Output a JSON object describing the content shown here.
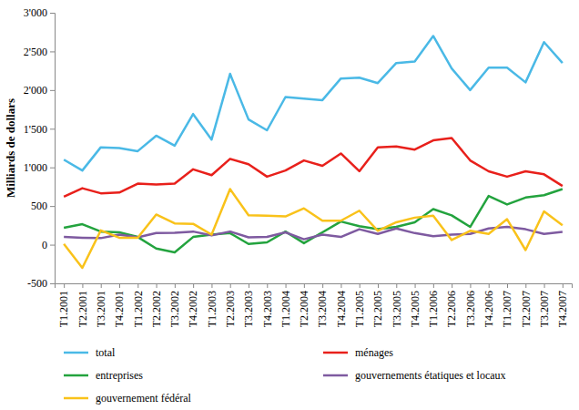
{
  "chart_data": {
    "type": "line",
    "y_label": "Milliards de dollars",
    "categories": [
      "T1.2001",
      "T2.2001",
      "T3.2001",
      "T4.2001",
      "T1.2002",
      "T2.2002",
      "T3.2002",
      "T4.2002",
      "T1.2003",
      "T2.2003",
      "T3.2003",
      "T4.2003",
      "T1.2004",
      "T2.2004",
      "T3.2004",
      "T4.2004",
      "T1.2005",
      "T2.2005",
      "T3.2005",
      "T4.2005",
      "T1.2006",
      "T2.2006",
      "T3.2006",
      "T4.2006",
      "T1.2007",
      "T2.2007",
      "T3.2007",
      "T4.2007"
    ],
    "series": [
      {
        "name": "total",
        "color": "#4ab9e6",
        "values": [
          1100,
          960,
          1260,
          1250,
          1210,
          1410,
          1280,
          1690,
          1360,
          2210,
          1620,
          1480,
          1910,
          1890,
          1870,
          2150,
          2160,
          2090,
          2350,
          2370,
          2700,
          2280,
          2000,
          2290,
          2290,
          2100,
          2620,
          2350
        ]
      },
      {
        "name": "ménages",
        "color": "#e8201b",
        "values": [
          620,
          730,
          665,
          675,
          790,
          780,
          790,
          975,
          900,
          1110,
          1040,
          880,
          960,
          1090,
          1020,
          1180,
          950,
          1260,
          1270,
          1230,
          1350,
          1380,
          1090,
          950,
          880,
          950,
          910,
          760
        ]
      },
      {
        "name": "entreprises",
        "color": "#23a33e",
        "values": [
          220,
          265,
          170,
          160,
          100,
          -50,
          -100,
          100,
          130,
          150,
          10,
          30,
          170,
          20,
          160,
          300,
          240,
          200,
          230,
          290,
          460,
          380,
          230,
          630,
          520,
          610,
          640,
          720
        ]
      },
      {
        "name": "gouvernements étatiques et locaux",
        "color": "#7e5aa0",
        "values": [
          100,
          90,
          85,
          130,
          95,
          150,
          155,
          170,
          120,
          170,
          95,
          100,
          160,
          70,
          130,
          100,
          200,
          140,
          210,
          150,
          110,
          130,
          140,
          210,
          230,
          200,
          140,
          165
        ]
      },
      {
        "name": "gouvernement fédéral",
        "color": "#f9c21a",
        "values": [
          10,
          -300,
          185,
          90,
          90,
          390,
          275,
          270,
          130,
          720,
          380,
          375,
          365,
          470,
          310,
          310,
          440,
          180,
          290,
          350,
          375,
          60,
          180,
          140,
          330,
          -70,
          430,
          250
        ]
      }
    ],
    "ylim": [
      -500,
      3000
    ],
    "yticks": [
      -500,
      0,
      500,
      {
        "value": 1000,
        "label": "1'000"
      },
      {
        "value": 1500,
        "label": "1'500"
      },
      {
        "value": 2000,
        "label": "2'000"
      },
      {
        "value": 2500,
        "label": "2'500"
      },
      {
        "value": 3000,
        "label": "3'000"
      }
    ],
    "grid": false,
    "legend": "bottom"
  }
}
